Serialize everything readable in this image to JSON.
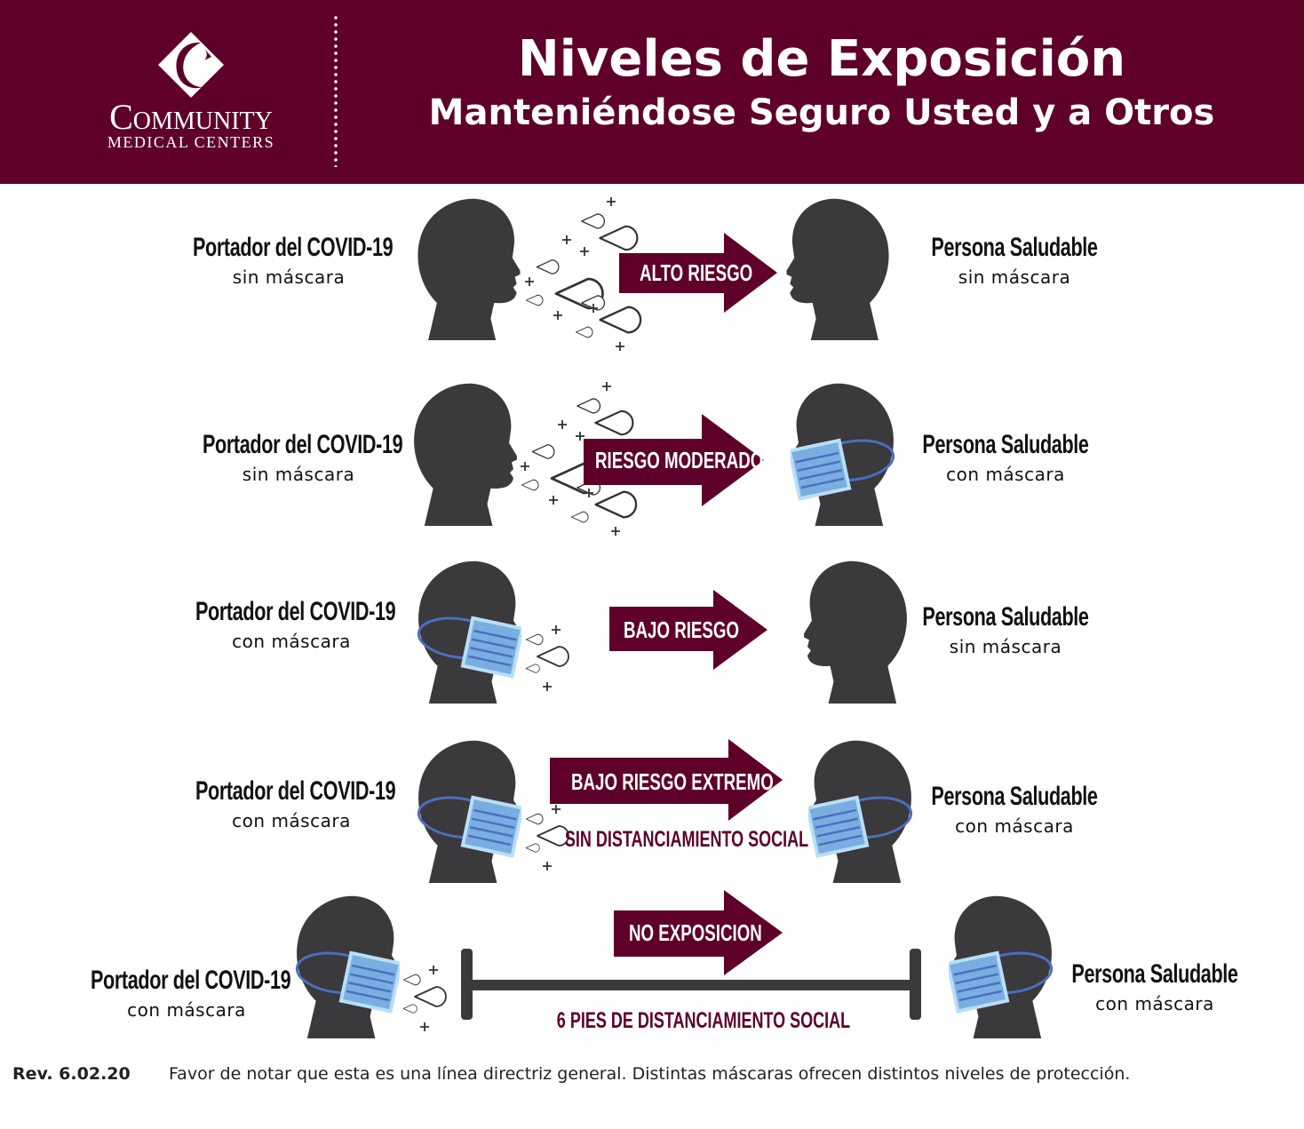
{
  "header": {
    "logo": {
      "main": "Community",
      "sub": "MEDICAL CENTERS"
    },
    "title": "Niveles de Exposición",
    "subtitle": "Manteniéndose Seguro Usted y a Otros",
    "background_color": "#5e0029"
  },
  "rows": [
    {
      "carrier": {
        "title": "Portador del COVID-19",
        "mask": "sin máscara"
      },
      "risk": "ALTO RIESGO",
      "healthy": {
        "title": "Persona Saludable",
        "mask": "sin máscara"
      }
    },
    {
      "carrier": {
        "title": "Portador del COVID-19",
        "mask": "sin máscara"
      },
      "risk": "RIESGO MODERADO",
      "healthy": {
        "title": "Persona Saludable",
        "mask": "con máscara"
      }
    },
    {
      "carrier": {
        "title": "Portador del COVID-19",
        "mask": "con máscara"
      },
      "risk": "BAJO RIESGO",
      "healthy": {
        "title": "Persona Saludable",
        "mask": "sin máscara"
      }
    },
    {
      "carrier": {
        "title": "Portador del COVID-19",
        "mask": "con máscara"
      },
      "risk": "BAJO RIESGO EXTREMO",
      "note": "SIN DISTANCIAMIENTO SOCIAL",
      "healthy": {
        "title": "Persona Saludable",
        "mask": "con máscara"
      }
    },
    {
      "carrier": {
        "title": "Portador del COVID-19",
        "mask": "con máscara"
      },
      "risk": "NO EXPOSICION",
      "note": "6 PIES DE DISTANCIAMIENTO SOCIAL",
      "healthy": {
        "title": "Persona Saludable",
        "mask": "con máscara"
      }
    }
  ],
  "footer": {
    "revision": "Rev. 6.02.20",
    "note": "Favor de notar que esta es una línea directriz general. Distintas máscaras ofrecen distintos niveles de protección."
  },
  "colors": {
    "accent": "#5e0029",
    "head": "#3a393b",
    "mask": "#7aaee0",
    "mask_border": "#b9def7",
    "mask_stripe": "#4b6fc0"
  }
}
